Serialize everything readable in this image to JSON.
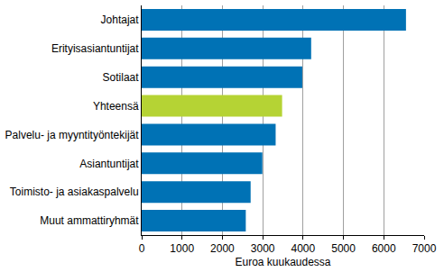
{
  "chart_data": {
    "type": "bar",
    "orientation": "horizontal",
    "categories": [
      "Johtajat",
      "Erityisasiantuntijat",
      "Sotilaat",
      "Yhteensä",
      "Palvelu- ja myyntityöntekijät",
      "Asiantuntijat",
      "Toimisto- ja asiakaspalvelu",
      "Muut ammattiryhmät"
    ],
    "values": [
      6550,
      4200,
      3980,
      3480,
      3320,
      2990,
      2700,
      2580
    ],
    "colors": [
      "#0072b5",
      "#0072b5",
      "#0072b5",
      "#b5d334",
      "#0072b5",
      "#0072b5",
      "#0072b5",
      "#0072b5"
    ],
    "x_label": "Euroa kuukaudessa",
    "xlim": [
      0,
      7000
    ],
    "xticks": [
      0,
      1000,
      2000,
      3000,
      4000,
      5000,
      6000,
      7000
    ],
    "grid": true
  }
}
